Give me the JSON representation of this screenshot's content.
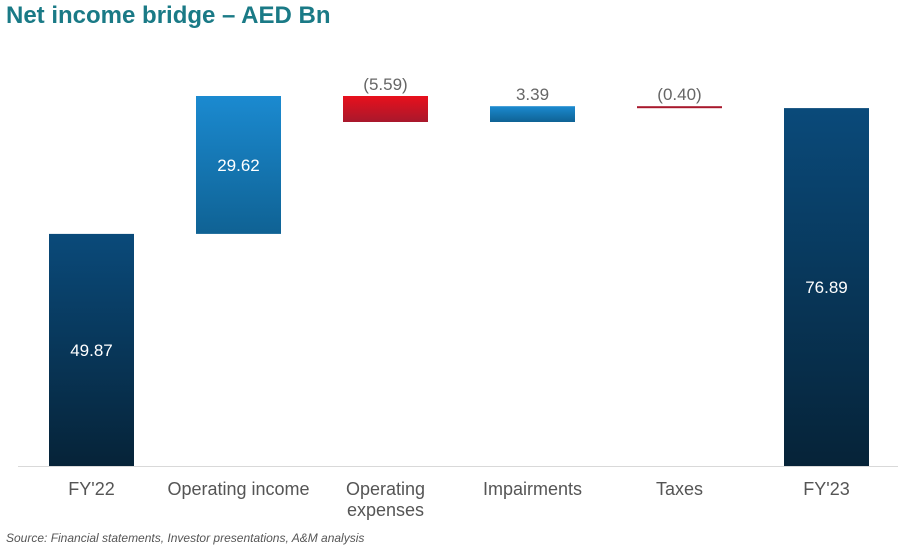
{
  "chart_data": {
    "type": "bar",
    "subtype": "waterfall",
    "title": "Net income bridge – AED Bn",
    "source": "Source: Financial statements, Investor presentations, A&M analysis",
    "categories": [
      [
        "FY'22"
      ],
      [
        "Operating income"
      ],
      [
        "Operating",
        "expenses"
      ],
      [
        "Impairments"
      ],
      [
        "Taxes"
      ],
      [
        "FY'23"
      ]
    ],
    "values": [
      49.87,
      29.62,
      -5.59,
      3.39,
      -0.4,
      76.89
    ],
    "value_labels": [
      "49.87",
      "29.62",
      "(5.59)",
      "3.39",
      "(0.40)",
      "76.89"
    ],
    "kinds": [
      "total",
      "increase",
      "decrease",
      "increase",
      "decrease",
      "total"
    ],
    "colors": {
      "total_top": "#0a4a7a",
      "total_bottom": "#062338",
      "increase_top": "#1b8ad0",
      "increase_bottom": "#0f6294",
      "decrease_top": "#e8101c",
      "decrease_bottom": "#a8182c",
      "label_inside": "#ffffff",
      "label_outside": "#666666",
      "axis": "#d9d9d9",
      "title": "#1a7a86"
    },
    "ylim": [
      0,
      80
    ],
    "grid": false,
    "legend": "none"
  }
}
